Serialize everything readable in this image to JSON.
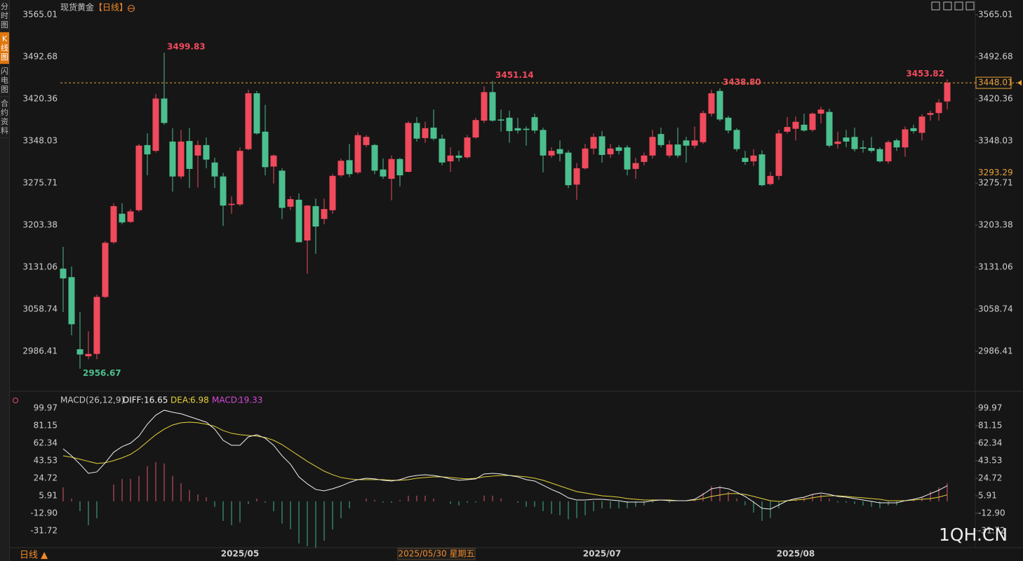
{
  "sidebar": {
    "tabs": [
      "分时图",
      "K线图",
      "闪电图",
      "合约资料"
    ]
  },
  "chart_data": [
    {
      "type": "candlestick",
      "title": "现货黄金",
      "period": "【日线】",
      "categories": [
        null,
        null,
        null,
        null,
        null,
        null,
        null,
        null,
        null,
        null,
        null,
        null,
        null,
        null,
        null,
        null,
        null,
        null,
        null,
        null,
        null,
        "2025/05",
        null,
        null,
        null,
        null,
        null,
        null,
        null,
        null,
        null,
        null,
        null,
        null,
        null,
        null,
        null,
        null,
        null,
        null,
        null,
        null,
        null,
        null,
        null,
        null,
        null,
        null,
        null,
        null,
        null,
        null,
        null,
        null,
        null,
        null,
        null,
        null,
        null,
        null,
        null,
        null,
        null,
        null,
        "2025/07",
        null,
        null,
        null,
        null,
        null,
        null,
        null,
        null,
        null,
        null,
        null,
        null,
        null,
        null,
        null,
        null,
        null,
        null,
        null,
        null,
        null,
        null,
        "2025/08",
        null,
        null,
        null,
        null,
        null,
        null,
        null,
        null,
        null,
        null,
        null,
        null,
        null,
        null,
        null,
        null,
        null,
        null
      ],
      "open": [
        3128.6,
        3114,
        2990,
        2978,
        2982,
        3080,
        3174,
        3223,
        3209,
        3229,
        3341,
        3331,
        3421,
        3347,
        3287,
        3348,
        3323,
        3341,
        3311,
        3287,
        3238,
        3239,
        3334,
        3430,
        3364,
        3304,
        3297,
        3235,
        3247,
        3177,
        3236,
        3214,
        3229,
        3289,
        3315,
        3294,
        3341,
        3341,
        3299,
        3283,
        3317,
        3295,
        3379,
        3353,
        3371,
        3352,
        3313,
        3323,
        3320,
        3354,
        3383,
        3432,
        3385,
        3388,
        3370,
        3369,
        3389,
        3367,
        3323,
        3334,
        3328,
        3273,
        3301,
        3335,
        3356,
        3325,
        3337,
        3337,
        3300,
        3312,
        3323,
        3360,
        3323,
        3342,
        3349,
        3340,
        3346,
        3395,
        3434,
        3388,
        3367,
        3319,
        3313,
        3325,
        3274,
        3288,
        3364,
        3369,
        3376,
        3367,
        3395,
        3398,
        3343,
        3354,
        3355,
        3337,
        3336,
        3334,
        3313,
        3349,
        3337,
        3370,
        3362,
        3393,
        3396,
        3416
      ],
      "high": [
        3166,
        3132,
        3054,
        3021,
        3084,
        3176,
        3241,
        3241,
        3231,
        3343,
        3361,
        3429,
        3499.83,
        3370,
        3367,
        3370,
        3349,
        3354,
        3319,
        3293,
        3253,
        3337,
        3436,
        3434,
        3410,
        3325,
        3301,
        3253,
        3258,
        3238,
        3249,
        3249,
        3291,
        3318,
        3343,
        3363,
        3358,
        3343,
        3318,
        3323,
        3319,
        3382,
        3389,
        3381,
        3402,
        3359,
        3337,
        3331,
        3358,
        3388,
        3442,
        3451.14,
        3402,
        3400,
        3388,
        3373,
        3395,
        3371,
        3337,
        3349,
        3332,
        3310,
        3343,
        3361,
        3365,
        3343,
        3341,
        3341,
        3319,
        3328,
        3367,
        3371,
        3349,
        3371,
        3355,
        3373,
        3400,
        3436,
        3438.8,
        3391,
        3370,
        3331,
        3334,
        3332,
        3295,
        3367,
        3389,
        3390,
        3395,
        3397,
        3407,
        3403,
        3364,
        3367,
        3371,
        3349,
        3355,
        3337,
        3349,
        3352,
        3373,
        3376,
        3394,
        3400,
        3420,
        3453.82
      ],
      "low": [
        3054,
        3014,
        2956.67,
        2973,
        2973,
        3078,
        3171,
        3205,
        3207,
        3226,
        3289,
        3328,
        3376,
        3261,
        3283,
        3267,
        3268,
        3301,
        3267,
        3202,
        3223,
        3236,
        3332,
        3359,
        3289,
        3275,
        3214,
        3229,
        3174,
        3120,
        3154,
        3205,
        3223,
        3286,
        3286,
        3291,
        3337,
        3291,
        3283,
        3246,
        3270,
        3294,
        3347,
        3345,
        3349,
        3306,
        3295,
        3313,
        3318,
        3352,
        3379,
        3381,
        3364,
        3345,
        3361,
        3340,
        3361,
        3294,
        3319,
        3313,
        3267,
        3247,
        3299,
        3325,
        3311,
        3319,
        3325,
        3289,
        3283,
        3306,
        3318,
        3337,
        3319,
        3319,
        3311,
        3335,
        3343,
        3390,
        3382,
        3361,
        3330,
        3307,
        3305,
        3270,
        3272,
        3281,
        3361,
        3349,
        3364,
        3364,
        3378,
        3337,
        3335,
        3337,
        3330,
        3328,
        3328,
        3311,
        3309,
        3331,
        3321,
        3361,
        3349,
        3383,
        3383,
        3402
      ],
      "close": [
        3111.8,
        3033,
        2981,
        2982,
        3080,
        3173,
        3236,
        3208,
        3227,
        3340,
        3325,
        3421,
        3379,
        3287,
        3347,
        3300,
        3341,
        3316,
        3287,
        3237,
        3240,
        3331,
        3430,
        3361,
        3303,
        3323,
        3233,
        3248,
        3174,
        3237,
        3201,
        3231,
        3288,
        3314,
        3291,
        3358,
        3355,
        3297,
        3287,
        3317,
        3289,
        3379,
        3352,
        3370,
        3352,
        3311,
        3323,
        3319,
        3354,
        3384,
        3432,
        3383,
        3383,
        3365,
        3366,
        3367,
        3366,
        3323,
        3331,
        3326,
        3272,
        3301,
        3335,
        3355,
        3324,
        3335,
        3331,
        3299,
        3310,
        3323,
        3355,
        3341,
        3342,
        3323,
        3340,
        3349,
        3396,
        3430,
        3385,
        3366,
        3334,
        3312,
        3323,
        3272,
        3288,
        3361,
        3372,
        3381,
        3366,
        3395,
        3402,
        3340,
        3347,
        3347,
        3334,
        3335,
        3331,
        3313,
        3346,
        3337,
        3368,
        3365,
        3390,
        3396,
        3414,
        3448.01
      ],
      "high_labels": [
        null,
        null,
        null,
        null,
        null,
        null,
        null,
        null,
        null,
        null,
        null,
        null,
        "3499.83",
        null,
        null,
        null,
        null,
        null,
        null,
        null,
        null,
        null,
        null,
        null,
        null,
        null,
        null,
        null,
        null,
        null,
        null,
        null,
        null,
        null,
        null,
        null,
        null,
        null,
        null,
        null,
        null,
        null,
        null,
        null,
        null,
        null,
        null,
        null,
        null,
        null,
        null,
        "3451.14",
        null,
        null,
        null,
        null,
        null,
        null,
        null,
        null,
        null,
        null,
        null,
        null,
        null,
        null,
        null,
        null,
        null,
        null,
        null,
        null,
        null,
        null,
        null,
        null,
        null,
        null,
        "3438.80",
        null,
        null,
        null,
        null,
        null,
        null,
        null,
        null,
        null,
        null,
        null,
        null,
        null,
        null,
        null,
        null,
        null,
        null,
        null,
        null,
        null,
        null,
        null,
        null,
        null,
        null,
        "3453.82"
      ],
      "low_labels": [
        null,
        null,
        "2956.67",
        null,
        null,
        null,
        null,
        null,
        null,
        null,
        null,
        null,
        null,
        null,
        null,
        null,
        null,
        null,
        null,
        null,
        null,
        null,
        null,
        null,
        null,
        null,
        null,
        null,
        null,
        null,
        null,
        null,
        null,
        null,
        null,
        null,
        null,
        null,
        null,
        null,
        null,
        null,
        null,
        null,
        null,
        null,
        null,
        null,
        null,
        null,
        null,
        null,
        null,
        null,
        null,
        null,
        null,
        null,
        null,
        null,
        null,
        null,
        null,
        null,
        null,
        null,
        null,
        null,
        null,
        null,
        null,
        null,
        null,
        null,
        null,
        null,
        null,
        null,
        null,
        null,
        null,
        null,
        null,
        null,
        null,
        null,
        null,
        null,
        null,
        null,
        null,
        null,
        null,
        null,
        null,
        null,
        null,
        null,
        null,
        null,
        null,
        null,
        null,
        null,
        null,
        null
      ],
      "up_color": "#f04a5c",
      "down_color": "#4cbf8e",
      "last_price_color": "#e8a13a",
      "ylim": [
        2927.4,
        3580.7
      ],
      "yticks": [
        3565.01,
        3492.68,
        3420.36,
        3348.03,
        3275.71,
        3203.38,
        3131.06,
        3058.74,
        2986.41
      ],
      "crosshair_price": 3293.29,
      "crosshair_date": "2025/05/30 星期五"
    },
    {
      "type": "macd",
      "title": "MACD(26,12,9)",
      "series": [
        {
          "name": "DIFF:",
          "color": "#f0f0f0",
          "values": [
            56.3,
            48.8,
            39.8,
            30.0,
            31.5,
            41.3,
            52.6,
            58.6,
            62.3,
            69.9,
            82.7,
            92.4,
            97.7,
            95.5,
            93.9,
            90.9,
            87.9,
            84.9,
            77.4,
            65.4,
            60.1,
            60.1,
            69.1,
            71.4,
            67.6,
            60.1,
            48.8,
            39.8,
            26.2,
            18.7,
            12.7,
            11.2,
            13.4,
            16.4,
            20.2,
            23.2,
            24.7,
            24.0,
            22.5,
            21.7,
            23.2,
            26.2,
            27.7,
            28.5,
            27.7,
            26.2,
            24.0,
            22.5,
            23.2,
            24.0,
            29.3,
            30.0,
            29.3,
            27.7,
            26.2,
            23.2,
            21.7,
            17.2,
            12.7,
            8.9,
            3.7,
            1.4,
            1.4,
            2.1,
            2.1,
            1.4,
            0.6,
            -0.9,
            -0.9,
            -0.9,
            0.6,
            1.4,
            0.6,
            0.6,
            0.6,
            2.1,
            7.4,
            13.4,
            14.9,
            13.4,
            9.7,
            5.2,
            -0.9,
            -7.6,
            -8.4,
            -3.9,
            0.6,
            2.9,
            4.4,
            7.4,
            8.9,
            7.4,
            5.2,
            4.4,
            2.9,
            1.4,
            -0.1,
            -1.6,
            -1.6,
            -1.6,
            0.6,
            2.1,
            4.4,
            8.2,
            11.9,
            16.65
          ]
        },
        {
          "name": "DEA:",
          "color": "#e6d23a",
          "values": [
            48.8,
            47.3,
            45.1,
            42.8,
            40.6,
            41.3,
            43.6,
            46.6,
            50.3,
            56.3,
            63.9,
            71.4,
            77.4,
            81.9,
            84.2,
            84.9,
            84.2,
            82.7,
            80.4,
            75.9,
            72.9,
            71.4,
            70.6,
            69.9,
            68.4,
            65.4,
            60.8,
            54.8,
            48.8,
            42.8,
            37.5,
            32.3,
            28.5,
            25.5,
            24.0,
            23.2,
            23.2,
            23.2,
            23.2,
            22.5,
            22.5,
            23.2,
            24.7,
            25.5,
            26.2,
            26.2,
            25.5,
            24.7,
            24.0,
            24.7,
            26.2,
            27.0,
            27.7,
            27.7,
            27.0,
            26.2,
            24.7,
            22.5,
            19.5,
            16.4,
            13.4,
            10.4,
            8.9,
            7.4,
            5.9,
            5.2,
            4.4,
            2.9,
            2.1,
            1.4,
            1.4,
            1.4,
            1.4,
            0.6,
            0.6,
            1.4,
            2.9,
            5.2,
            6.7,
            8.2,
            8.2,
            7.4,
            5.2,
            2.9,
            0.6,
            -0.1,
            0.6,
            1.4,
            2.1,
            3.7,
            5.2,
            5.9,
            5.9,
            5.2,
            4.4,
            3.7,
            2.9,
            2.1,
            0.6,
            0.6,
            0.6,
            1.4,
            2.1,
            2.9,
            4.4,
            6.98
          ]
        },
        {
          "name": "MACD:",
          "color": "#d24ad6",
          "up_color": "#e0566a",
          "down_color": "#42b48e",
          "values": [
            15.0,
            3.0,
            -10.6,
            -25.6,
            -18.2,
            0.0,
            18.0,
            24.0,
            24.0,
            27.2,
            37.6,
            42.0,
            40.6,
            27.2,
            19.4,
            12.0,
            7.4,
            4.4,
            -6.0,
            -21.0,
            -25.6,
            -22.6,
            -3.0,
            3.0,
            -1.6,
            -10.6,
            -24.0,
            -30.0,
            -45.2,
            -48.2,
            -49.6,
            -42.2,
            -30.2,
            -18.2,
            -7.6,
            0.0,
            3.0,
            1.6,
            -1.4,
            -1.6,
            1.4,
            6.0,
            6.0,
            6.0,
            3.0,
            0.0,
            -3.0,
            -4.4,
            -1.6,
            -1.4,
            6.2,
            6.0,
            3.2,
            0.0,
            -1.6,
            -6.0,
            -6.0,
            -10.6,
            -13.6,
            -15.0,
            -19.4,
            -18.0,
            -15.0,
            -10.6,
            -7.6,
            -7.6,
            -7.6,
            -7.6,
            -6.0,
            -4.6,
            -1.6,
            0.0,
            -1.6,
            0.0,
            0.0,
            1.4,
            9.0,
            16.4,
            16.4,
            10.4,
            3.0,
            -4.4,
            -12.2,
            -21.0,
            -18.0,
            -7.6,
            0.0,
            3.0,
            4.6,
            7.4,
            7.4,
            3.0,
            -1.4,
            -1.6,
            -3.0,
            -4.6,
            -6.0,
            -7.4,
            -4.4,
            -4.4,
            0.0,
            1.4,
            4.6,
            10.6,
            15.0,
            19.33
          ]
        }
      ],
      "ylim": [
        -52.8,
        105.2
      ],
      "yticks": [
        99.97,
        81.15,
        62.34,
        43.53,
        24.72,
        5.91,
        {
          "value": -12.9,
          "label": "-12.90"
        },
        -31.72
      ]
    }
  ],
  "footer": {
    "period_button": "日线 ▲",
    "watermark": "1QH.CN"
  }
}
